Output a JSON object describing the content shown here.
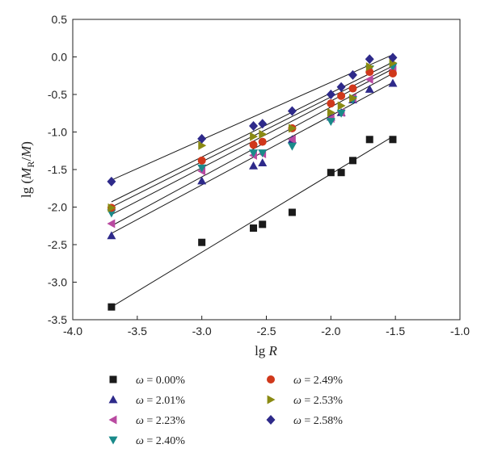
{
  "chart_data": {
    "type": "scatter",
    "xlabel": "lg R",
    "ylabel": "lg (M_R/M)",
    "xlim": [
      -4.0,
      -1.0
    ],
    "ylim": [
      -3.5,
      0.5
    ],
    "xticks": [
      "-4.0",
      "-3.5",
      "-3.0",
      "-2.5",
      "-2.0",
      "-1.5",
      "-1.0"
    ],
    "yticks": [
      "0.5",
      "0.0",
      "-0.5",
      "-1.0",
      "-1.5",
      "-2.0",
      "-2.5",
      "-3.0",
      "-3.5"
    ],
    "grid": false,
    "legend_position": "bottom",
    "fit_lines": true,
    "series": [
      {
        "name": "ω = 0.00%",
        "marker": "square",
        "color": "#1a1a1a",
        "x": [
          -3.7,
          -3.0,
          -2.6,
          -2.53,
          -2.3,
          -2.0,
          -1.92,
          -1.83,
          -1.7,
          -1.52
        ],
        "y": [
          -3.33,
          -2.47,
          -2.28,
          -2.23,
          -2.07,
          -1.54,
          -1.54,
          -1.38,
          -1.1,
          -1.1
        ],
        "fit": [
          -3.33,
          -1.06
        ]
      },
      {
        "name": "ω = 2.01%",
        "marker": "triangle-up",
        "color": "#2e2a8a",
        "x": [
          -3.7,
          -3.0,
          -2.6,
          -2.53,
          -2.3,
          -2.0,
          -1.92,
          -1.83,
          -1.7,
          -1.52
        ],
        "y": [
          -2.38,
          -1.65,
          -1.45,
          -1.41,
          -1.1,
          -0.8,
          -0.74,
          -0.57,
          -0.43,
          -0.35
        ],
        "fit": [
          -2.35,
          -0.34
        ]
      },
      {
        "name": "ω = 2.23%",
        "marker": "triangle-left",
        "color": "#b94aa1",
        "x": [
          -3.7,
          -3.0,
          -2.6,
          -2.53,
          -2.3,
          -2.0,
          -1.92,
          -1.83,
          -1.7,
          -1.52
        ],
        "y": [
          -2.22,
          -1.52,
          -1.31,
          -1.29,
          -1.1,
          -0.82,
          -0.74,
          -0.55,
          -0.3,
          -0.17
        ],
        "fit": [
          -2.25,
          -0.22
        ]
      },
      {
        "name": "ω = 2.40%",
        "marker": "triangle-down",
        "color": "#1a8a8a",
        "x": [
          -3.7,
          -3.0,
          -2.6,
          -2.53,
          -2.3,
          -2.0,
          -1.92,
          -1.83,
          -1.7,
          -1.52
        ],
        "y": [
          -2.08,
          -1.48,
          -1.28,
          -1.28,
          -1.19,
          -0.86,
          -0.75,
          -0.57,
          -0.16,
          -0.13
        ],
        "fit": [
          -2.1,
          -0.16
        ]
      },
      {
        "name": "ω = 2.49%",
        "marker": "circle",
        "color": "#d0381b",
        "x": [
          -3.7,
          -3.0,
          -2.6,
          -2.53,
          -2.3,
          -2.0,
          -1.92,
          -1.83,
          -1.7,
          -1.52
        ],
        "y": [
          -2.01,
          -1.38,
          -1.17,
          -1.13,
          -0.95,
          -0.62,
          -0.52,
          -0.42,
          -0.2,
          -0.22
        ],
        "fit": [
          -2.0,
          -0.12
        ]
      },
      {
        "name": "ω = 2.53%",
        "marker": "triangle-right",
        "color": "#8a8a12",
        "x": [
          -3.7,
          -3.0,
          -2.6,
          -2.53,
          -2.3,
          -2.0,
          -1.92,
          -1.83,
          -1.7,
          -1.52
        ],
        "y": [
          -2.01,
          -1.18,
          -1.06,
          -1.03,
          -0.95,
          -0.74,
          -0.65,
          -0.55,
          -0.13,
          -0.08
        ],
        "fit": [
          -1.93,
          -0.07
        ]
      },
      {
        "name": "ω = 2.58%",
        "marker": "diamond",
        "color": "#2e2a8a",
        "x": [
          -3.7,
          -3.0,
          -2.6,
          -2.53,
          -2.3,
          -2.0,
          -1.92,
          -1.83,
          -1.7,
          -1.52
        ],
        "y": [
          -1.66,
          -1.09,
          -0.92,
          -0.89,
          -0.72,
          -0.5,
          -0.4,
          -0.24,
          -0.03,
          -0.01
        ],
        "fit": [
          -1.64,
          0.03
        ]
      }
    ]
  }
}
